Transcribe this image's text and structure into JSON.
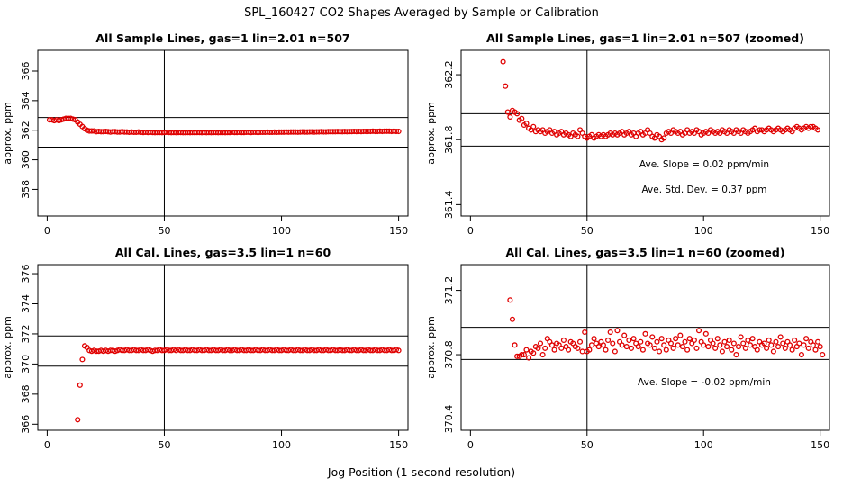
{
  "figure": {
    "title": "SPL_160427  CO2 Shapes Averaged by Sample or Calibration",
    "xlabel": "Jog Position (1 second resolution)"
  },
  "colors": {
    "points": "#e00000",
    "axes": "#000000"
  },
  "chart_data": [
    {
      "type": "scatter",
      "title": "All Sample Lines, gas=1 lin=2.01 n=507",
      "ylabel": "approx. ppm",
      "xlim": [
        -4,
        154
      ],
      "ylim": [
        356.2,
        367.4
      ],
      "xticks": [
        0,
        50,
        100,
        150
      ],
      "yticks": [
        358,
        360,
        362,
        364,
        366
      ],
      "yticklabels": [
        "358",
        "360",
        "362",
        "364",
        "366"
      ],
      "hlines": [
        360.86,
        362.86
      ],
      "vline": 50,
      "annotations": [],
      "x_start": 1,
      "values": [
        362.7,
        362.7,
        362.65,
        362.7,
        362.65,
        362.7,
        362.75,
        362.8,
        362.8,
        362.8,
        362.75,
        362.7,
        362.55,
        362.4,
        362.25,
        362.1,
        362.0,
        361.95,
        361.95,
        361.95,
        361.9,
        361.92,
        361.9,
        361.9,
        361.92,
        361.9,
        361.88,
        361.9,
        361.9,
        361.88,
        361.88,
        361.9,
        361.88,
        361.88,
        361.86,
        361.88,
        361.86,
        361.86,
        361.88,
        361.86,
        361.85,
        361.86,
        361.85,
        361.86,
        361.85,
        361.84,
        361.85,
        361.85,
        361.84,
        361.85,
        361.86,
        361.85,
        361.84,
        361.85,
        361.84,
        361.85,
        361.85,
        361.84,
        361.84,
        361.85,
        361.84,
        361.85,
        361.84,
        361.85,
        361.85,
        361.84,
        361.85,
        361.84,
        361.85,
        361.84,
        361.85,
        361.85,
        361.84,
        361.85,
        361.85,
        361.84,
        361.85,
        361.85,
        361.86,
        361.85,
        361.85,
        361.86,
        361.85,
        361.85,
        361.86,
        361.86,
        361.85,
        361.86,
        361.86,
        361.85,
        361.86,
        361.86,
        361.86,
        361.87,
        361.86,
        361.86,
        361.87,
        361.86,
        361.87,
        361.87,
        361.87,
        361.88,
        361.87,
        361.88,
        361.88,
        361.88,
        361.87,
        361.88,
        361.89,
        361.88,
        361.88,
        361.89,
        361.89,
        361.88,
        361.89,
        361.89,
        361.9,
        361.89,
        361.89,
        361.9,
        361.9,
        361.9,
        361.9,
        361.91,
        361.9,
        361.9,
        361.91,
        361.9,
        361.91,
        361.91,
        361.92,
        361.91,
        361.92,
        361.91,
        361.92,
        361.92,
        361.92,
        361.92,
        361.93,
        361.92,
        361.92,
        361.93,
        361.92,
        361.93,
        361.93,
        361.93,
        361.92,
        361.93,
        361.92,
        361.92
      ]
    },
    {
      "type": "scatter",
      "title": "All Sample Lines, gas=1 lin=2.01 n=507 (zoomed)",
      "ylabel": "approx. ppm",
      "xlim": [
        -4,
        154
      ],
      "ylim": [
        361.33,
        362.35
      ],
      "xticks": [
        0,
        50,
        100,
        150
      ],
      "yticks": [
        361.4,
        361.8,
        362.2
      ],
      "yticklabels": [
        "361.4",
        "361.8",
        "362.2"
      ],
      "hlines": [
        361.76,
        361.96
      ],
      "vline": 50,
      "annotations": [
        "Ave. Slope =  0.02  ppm/min",
        "Ave. Std. Dev. =  0.37  ppm"
      ],
      "x_start": 14,
      "values": [
        362.28,
        362.13,
        361.97,
        361.94,
        361.98,
        361.97,
        361.96,
        361.92,
        361.93,
        361.89,
        361.9,
        361.87,
        361.86,
        361.88,
        361.85,
        361.86,
        361.85,
        361.86,
        361.84,
        361.85,
        361.86,
        361.84,
        361.85,
        361.83,
        361.84,
        361.85,
        361.83,
        361.84,
        361.83,
        361.82,
        361.84,
        361.83,
        361.82,
        361.86,
        361.84,
        361.82,
        361.81,
        361.82,
        361.83,
        361.81,
        361.82,
        361.83,
        361.82,
        361.83,
        361.82,
        361.83,
        361.84,
        361.83,
        361.84,
        361.83,
        361.84,
        361.85,
        361.83,
        361.84,
        361.85,
        361.83,
        361.84,
        361.82,
        361.84,
        361.85,
        361.83,
        361.84,
        361.86,
        361.84,
        361.82,
        361.81,
        361.83,
        361.82,
        361.8,
        361.81,
        361.84,
        361.85,
        361.84,
        361.86,
        361.85,
        361.84,
        361.85,
        361.83,
        361.84,
        361.86,
        361.84,
        361.85,
        361.84,
        361.86,
        361.85,
        361.83,
        361.84,
        361.85,
        361.84,
        361.86,
        361.85,
        361.84,
        361.85,
        361.84,
        361.86,
        361.85,
        361.84,
        361.86,
        361.85,
        361.84,
        361.86,
        361.85,
        361.84,
        361.86,
        361.85,
        361.84,
        361.85,
        361.86,
        361.87,
        361.85,
        361.86,
        361.86,
        361.85,
        361.86,
        361.87,
        361.86,
        361.85,
        361.86,
        361.87,
        361.86,
        361.85,
        361.86,
        361.87,
        361.86,
        361.85,
        361.87,
        361.88,
        361.87,
        361.86,
        361.87,
        361.88,
        361.87,
        361.88,
        361.88,
        361.87,
        361.86
      ]
    },
    {
      "type": "scatter",
      "title": "All Cal. Lines, gas=3.5 lin=1 n=60",
      "ylabel": "approx. ppm",
      "xlim": [
        -4,
        154
      ],
      "ylim": [
        365.6,
        376.6
      ],
      "xticks": [
        0,
        50,
        100,
        150
      ],
      "yticks": [
        366,
        368,
        370,
        372,
        374,
        376
      ],
      "yticklabels": [
        "366",
        "368",
        "370",
        "372",
        "374",
        "376"
      ],
      "hlines": [
        369.86,
        371.86
      ],
      "vline": 50,
      "annotations": [],
      "x_start": 13,
      "values": [
        366.3,
        368.6,
        370.3,
        371.2,
        371.1,
        370.9,
        370.85,
        370.9,
        370.85,
        370.85,
        370.9,
        370.85,
        370.9,
        370.85,
        370.9,
        370.9,
        370.85,
        370.9,
        370.95,
        370.9,
        370.9,
        370.95,
        370.9,
        370.9,
        370.95,
        370.9,
        370.9,
        370.95,
        370.9,
        370.9,
        370.95,
        370.9,
        370.85,
        370.9,
        370.9,
        370.95,
        370.9,
        370.9,
        370.95,
        370.9,
        370.9,
        370.95,
        370.9,
        370.95,
        370.9,
        370.9,
        370.95,
        370.9,
        370.9,
        370.95,
        370.9,
        370.9,
        370.95,
        370.9,
        370.9,
        370.95,
        370.9,
        370.9,
        370.95,
        370.9,
        370.9,
        370.95,
        370.9,
        370.9,
        370.95,
        370.9,
        370.9,
        370.95,
        370.9,
        370.9,
        370.95,
        370.9,
        370.9,
        370.95,
        370.9,
        370.9,
        370.95,
        370.9,
        370.9,
        370.95,
        370.9,
        370.9,
        370.95,
        370.9,
        370.9,
        370.95,
        370.9,
        370.9,
        370.95,
        370.9,
        370.9,
        370.95,
        370.9,
        370.9,
        370.95,
        370.9,
        370.9,
        370.95,
        370.9,
        370.9,
        370.95,
        370.9,
        370.9,
        370.95,
        370.9,
        370.9,
        370.95,
        370.9,
        370.9,
        370.95,
        370.9,
        370.9,
        370.95,
        370.9,
        370.9,
        370.95,
        370.9,
        370.9,
        370.95,
        370.9,
        370.9,
        370.95,
        370.9,
        370.9,
        370.95,
        370.9,
        370.9,
        370.95,
        370.9,
        370.9,
        370.95,
        370.9,
        370.9,
        370.95,
        370.9,
        370.9,
        370.95,
        370.9
      ]
    },
    {
      "type": "scatter",
      "title": "All Cal. Lines, gas=3.5 lin=1 n=60 (zoomed)",
      "ylabel": "approx. ppm",
      "xlim": [
        -4,
        154
      ],
      "ylim": [
        370.33,
        371.36
      ],
      "xticks": [
        0,
        50,
        100,
        150
      ],
      "yticks": [
        370.4,
        370.8,
        371.2
      ],
      "yticklabels": [
        "370.4",
        "370.8",
        "371.2"
      ],
      "hlines": [
        370.77,
        370.97
      ],
      "vline": 50,
      "annotations": [
        "Ave. Slope =  -0.02  ppm/min"
      ],
      "x_start": 17,
      "values": [
        371.14,
        371.02,
        370.86,
        370.79,
        370.79,
        370.8,
        370.8,
        370.83,
        370.78,
        370.82,
        370.81,
        370.85,
        370.84,
        370.87,
        370.8,
        370.84,
        370.9,
        370.88,
        370.86,
        370.83,
        370.87,
        370.86,
        370.84,
        370.89,
        370.85,
        370.83,
        370.88,
        370.87,
        370.85,
        370.84,
        370.88,
        370.82,
        370.94,
        370.82,
        370.83,
        370.86,
        370.9,
        370.87,
        370.85,
        370.88,
        370.86,
        370.83,
        370.89,
        370.94,
        370.87,
        370.82,
        370.95,
        370.88,
        370.86,
        370.92,
        370.85,
        370.89,
        370.84,
        370.9,
        370.87,
        370.85,
        370.88,
        370.83,
        370.93,
        370.87,
        370.86,
        370.91,
        370.84,
        370.88,
        370.82,
        370.9,
        370.86,
        370.83,
        370.89,
        370.87,
        370.84,
        370.9,
        370.86,
        370.92,
        370.85,
        370.88,
        370.83,
        370.9,
        370.87,
        370.89,
        370.84,
        370.95,
        370.88,
        370.86,
        370.93,
        370.85,
        370.89,
        370.87,
        370.84,
        370.9,
        370.86,
        370.82,
        370.88,
        370.85,
        370.89,
        370.83,
        370.87,
        370.8,
        370.85,
        370.91,
        370.87,
        370.84,
        370.89,
        370.86,
        370.9,
        370.85,
        370.83,
        370.88,
        370.86,
        370.87,
        370.84,
        370.89,
        370.86,
        370.82,
        370.88,
        370.85,
        370.91,
        370.87,
        370.84,
        370.88,
        370.86,
        370.83,
        370.89,
        370.85,
        370.87,
        370.8,
        370.86,
        370.9,
        370.84,
        370.88,
        370.86,
        370.83,
        370.88,
        370.85,
        370.8
      ]
    }
  ]
}
